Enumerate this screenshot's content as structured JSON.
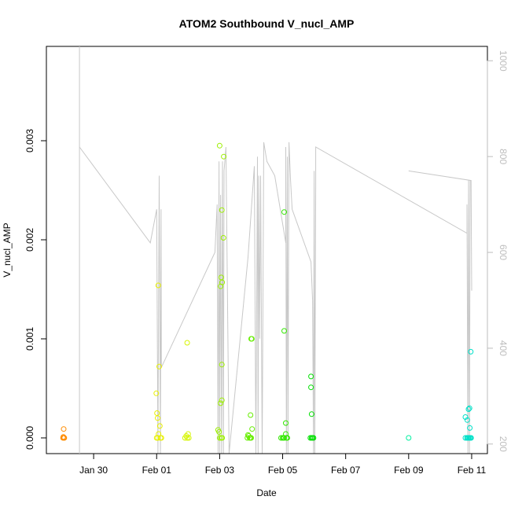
{
  "chart_data": {
    "type": "scatter",
    "title": "ATOM2 Southbound V_nucl_AMP",
    "xlabel": "Date",
    "ylabel": "V_nucl_AMP",
    "x_ticks": [
      "Jan 30",
      "Feb 01",
      "Feb 03",
      "Feb 05",
      "Feb 07",
      "Feb 09",
      "Feb 11"
    ],
    "x_tick_values": [
      0,
      2,
      4,
      6,
      8,
      10,
      12
    ],
    "x_range": [
      -1.5,
      12.5
    ],
    "y_ticks": [
      "0.000",
      "0.001",
      "0.002",
      "0.003"
    ],
    "y_tick_values": [
      0,
      0.001,
      0.002,
      0.003
    ],
    "ylim": [
      0,
      0.0039
    ],
    "y2_ticks": [
      "200",
      "400",
      "600",
      "800",
      "1000"
    ],
    "y2_tick_values": [
      200,
      400,
      600,
      800,
      1000
    ],
    "y2lim": [
      1030,
      180
    ],
    "points": [
      {
        "x": -0.97,
        "y": 0.0,
        "color": "#ff8c00"
      },
      {
        "x": -0.96,
        "y": 1e-05,
        "color": "#ff8c00"
      },
      {
        "x": -0.95,
        "y": 9e-05,
        "color": "#ff8c00"
      },
      {
        "x": -0.94,
        "y": 0.0,
        "color": "#ff8c00"
      },
      {
        "x": -0.93,
        "y": 0.0,
        "color": "#ff8c00"
      },
      {
        "x": 1.99,
        "y": 0.00045,
        "color": "#e8f000"
      },
      {
        "x": 2.01,
        "y": 0.00025,
        "color": "#e8f000"
      },
      {
        "x": 2.03,
        "y": 0.0002,
        "color": "#e8f000"
      },
      {
        "x": 2.06,
        "y": 4e-05,
        "color": "#e8f000"
      },
      {
        "x": 2.08,
        "y": 0.00072,
        "color": "#e8f000"
      },
      {
        "x": 2.1,
        "y": 0.00012,
        "color": "#e8f000"
      },
      {
        "x": 2.12,
        "y": 0.0,
        "color": "#e8f000"
      },
      {
        "x": 2.15,
        "y": 0.0,
        "color": "#e8f000"
      },
      {
        "x": 2.05,
        "y": 0.00154,
        "color": "#e8f000"
      },
      {
        "x": 2.0,
        "y": 0.0,
        "color": "#e8f000"
      },
      {
        "x": 2.04,
        "y": 0.0,
        "color": "#e8f000"
      },
      {
        "x": 2.9,
        "y": 0.0,
        "color": "#d6f500"
      },
      {
        "x": 2.94,
        "y": 2e-05,
        "color": "#d6f500"
      },
      {
        "x": 2.97,
        "y": 0.0,
        "color": "#d6f500"
      },
      {
        "x": 3.0,
        "y": 4e-05,
        "color": "#d6f500"
      },
      {
        "x": 2.97,
        "y": 0.00096,
        "color": "#d6f500"
      },
      {
        "x": 3.02,
        "y": 0.0,
        "color": "#d6f500"
      },
      {
        "x": 3.95,
        "y": 8e-05,
        "color": "#9cf000"
      },
      {
        "x": 3.98,
        "y": 6e-05,
        "color": "#9cf000"
      },
      {
        "x": 4.0,
        "y": 0.0,
        "color": "#9cf000"
      },
      {
        "x": 4.03,
        "y": 0.00035,
        "color": "#9cf000"
      },
      {
        "x": 4.05,
        "y": 0.0,
        "color": "#9cf000"
      },
      {
        "x": 4.08,
        "y": 0.0,
        "color": "#9cf000"
      },
      {
        "x": 4.0,
        "y": 0.00295,
        "color": "#9cf000"
      },
      {
        "x": 4.07,
        "y": 0.00038,
        "color": "#9cf000"
      },
      {
        "x": 4.13,
        "y": 0.00284,
        "color": "#9cf000"
      },
      {
        "x": 4.07,
        "y": 0.0023,
        "color": "#9cf000"
      },
      {
        "x": 4.12,
        "y": 0.00202,
        "color": "#9cf000"
      },
      {
        "x": 4.05,
        "y": 0.00162,
        "color": "#9cf000"
      },
      {
        "x": 4.08,
        "y": 0.00157,
        "color": "#9cf000"
      },
      {
        "x": 4.03,
        "y": 0.00153,
        "color": "#9cf000"
      },
      {
        "x": 4.07,
        "y": 0.00074,
        "color": "#9cf000"
      },
      {
        "x": 4.88,
        "y": 0.0,
        "color": "#66ee00"
      },
      {
        "x": 4.92,
        "y": 2e-05,
        "color": "#66ee00"
      },
      {
        "x": 4.95,
        "y": 0.0,
        "color": "#66ee00"
      },
      {
        "x": 4.98,
        "y": 0.0,
        "color": "#66ee00"
      },
      {
        "x": 5.0,
        "y": 0.0,
        "color": "#66ee00"
      },
      {
        "x": 5.03,
        "y": 9e-05,
        "color": "#66ee00"
      },
      {
        "x": 4.98,
        "y": 0.00023,
        "color": "#66ee00"
      },
      {
        "x": 5.0,
        "y": 0.001,
        "color": "#66ee00"
      },
      {
        "x": 5.02,
        "y": 0.001,
        "color": "#66ee00"
      },
      {
        "x": 4.9,
        "y": 3e-05,
        "color": "#66ee00"
      },
      {
        "x": 5.95,
        "y": 0.0,
        "color": "#33e800"
      },
      {
        "x": 6.0,
        "y": 0.0,
        "color": "#33e800"
      },
      {
        "x": 6.03,
        "y": 0.0,
        "color": "#33e800"
      },
      {
        "x": 6.05,
        "y": 0.0,
        "color": "#33e800"
      },
      {
        "x": 6.1,
        "y": 4e-05,
        "color": "#33e800"
      },
      {
        "x": 6.12,
        "y": 0.0,
        "color": "#33e800"
      },
      {
        "x": 6.15,
        "y": 0.0,
        "color": "#33e800"
      },
      {
        "x": 6.1,
        "y": 0.00015,
        "color": "#33e800"
      },
      {
        "x": 6.05,
        "y": 0.00228,
        "color": "#33e800"
      },
      {
        "x": 6.05,
        "y": 0.00108,
        "color": "#33e800"
      },
      {
        "x": 6.88,
        "y": 0.0,
        "color": "#00e000"
      },
      {
        "x": 6.92,
        "y": 0.0,
        "color": "#00e000"
      },
      {
        "x": 6.95,
        "y": 0.0,
        "color": "#00e000"
      },
      {
        "x": 6.98,
        "y": 0.0,
        "color": "#00e000"
      },
      {
        "x": 6.9,
        "y": 0.00062,
        "color": "#00e000"
      },
      {
        "x": 6.9,
        "y": 0.00051,
        "color": "#00e000"
      },
      {
        "x": 6.92,
        "y": 0.00024,
        "color": "#00e000"
      },
      {
        "x": 10.0,
        "y": 0.0,
        "color": "#00f0a0"
      },
      {
        "x": 11.8,
        "y": 0.0,
        "color": "#00e0c8"
      },
      {
        "x": 11.85,
        "y": 0.0,
        "color": "#00e0c8"
      },
      {
        "x": 11.88,
        "y": 0.0,
        "color": "#00e0c8"
      },
      {
        "x": 11.9,
        "y": 0.0,
        "color": "#00e0c8"
      },
      {
        "x": 11.93,
        "y": 0.0,
        "color": "#00e0c8"
      },
      {
        "x": 11.96,
        "y": 0.0,
        "color": "#00e0c8"
      },
      {
        "x": 11.98,
        "y": 0.0,
        "color": "#00e0c8"
      },
      {
        "x": 11.8,
        "y": 0.00021,
        "color": "#00e0c8"
      },
      {
        "x": 11.86,
        "y": 0.00018,
        "color": "#00e0c8"
      },
      {
        "x": 11.9,
        "y": 0.00029,
        "color": "#00e0c8"
      },
      {
        "x": 11.93,
        "y": 0.0003,
        "color": "#00e0c8"
      },
      {
        "x": 11.94,
        "y": 0.0001,
        "color": "#00e0c8"
      },
      {
        "x": 11.97,
        "y": 0.00087,
        "color": "#00e0c8"
      }
    ],
    "line_series": {
      "color": "#c8c8c8",
      "axis": "y2",
      "points": [
        [
          -0.45,
          180
        ],
        [
          -0.45,
          1030
        ],
        [
          -0.45,
          820
        ],
        [
          1.8,
          620
        ],
        [
          2.0,
          690
        ],
        [
          2.04,
          180
        ],
        [
          2.08,
          760
        ],
        [
          2.12,
          180
        ],
        [
          2.14,
          690
        ],
        [
          2.15,
          360
        ],
        [
          3.85,
          600
        ],
        [
          3.92,
          700
        ],
        [
          3.95,
          180
        ],
        [
          3.98,
          790
        ],
        [
          4.0,
          180
        ],
        [
          4.03,
          720
        ],
        [
          4.06,
          180
        ],
        [
          4.09,
          790
        ],
        [
          4.12,
          180
        ],
        [
          4.14,
          770
        ],
        [
          4.2,
          820
        ],
        [
          4.3,
          180
        ],
        [
          4.9,
          590
        ],
        [
          5.1,
          780
        ],
        [
          5.15,
          180
        ],
        [
          5.2,
          800
        ],
        [
          5.22,
          180
        ],
        [
          5.24,
          760
        ],
        [
          5.27,
          420
        ],
        [
          5.3,
          760
        ],
        [
          5.35,
          180
        ],
        [
          5.4,
          830
        ],
        [
          5.5,
          790
        ],
        [
          5.75,
          760
        ],
        [
          6.1,
          620
        ],
        [
          6.1,
          820
        ],
        [
          6.12,
          180
        ],
        [
          6.15,
          800
        ],
        [
          6.17,
          180
        ],
        [
          6.2,
          830
        ],
        [
          6.25,
          750
        ],
        [
          6.3,
          690
        ],
        [
          6.9,
          580
        ],
        [
          6.95,
          500
        ],
        [
          6.98,
          180
        ],
        [
          7.0,
          770
        ],
        [
          7.02,
          180
        ],
        [
          7.05,
          740
        ],
        [
          7.05,
          820
        ],
        [
          11.85,
          640
        ],
        [
          11.85,
          700
        ],
        [
          11.88,
          180
        ],
        [
          11.9,
          750
        ],
        [
          11.93,
          180
        ],
        [
          11.95,
          750
        ],
        [
          11.98,
          750
        ],
        [
          12.0,
          520
        ],
        [
          11.98,
          750
        ],
        [
          10.0,
          770
        ]
      ]
    }
  }
}
